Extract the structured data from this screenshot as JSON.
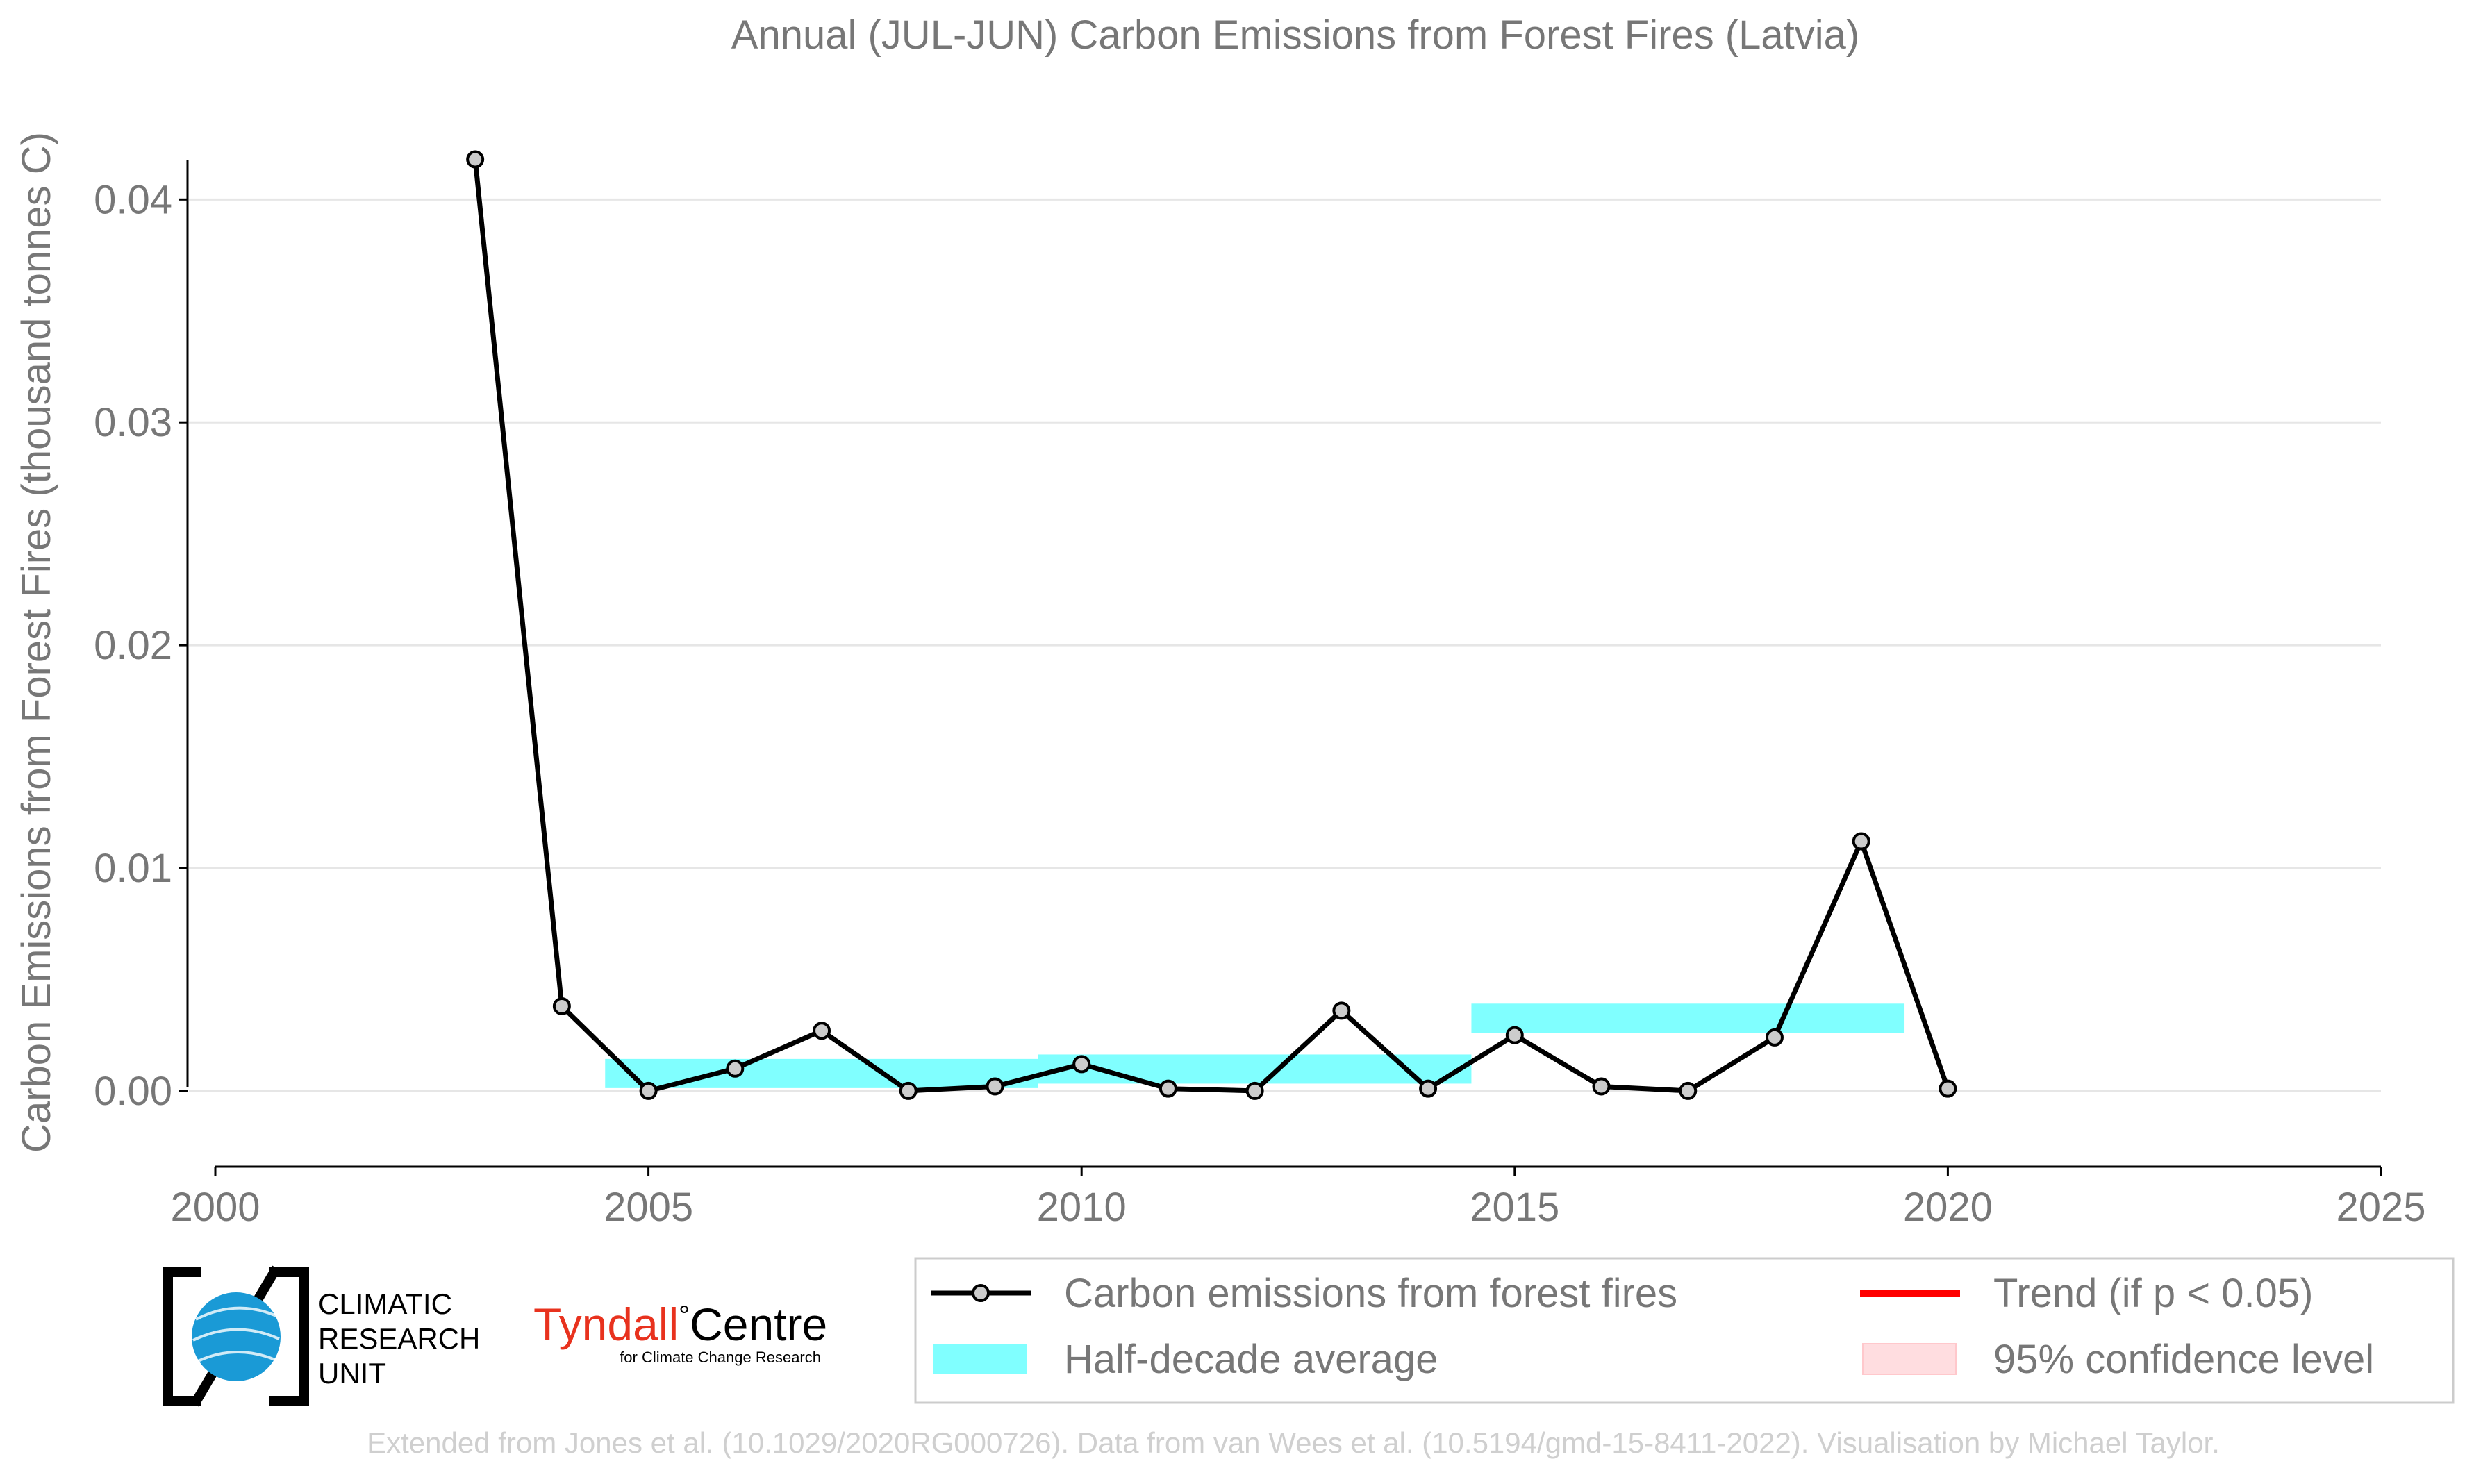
{
  "chart_data": {
    "type": "line",
    "title": "Annual (JUL-JUN) Carbon Emissions from Forest Fires (Latvia)",
    "xlabel": "",
    "ylabel": "Carbon Emissions from Forest Fires (thousand tonnes C)",
    "xlim": [
      2000,
      2025
    ],
    "ylim": [
      -0.0034,
      0.0435
    ],
    "x_ticks": [
      2000,
      2005,
      2010,
      2015,
      2020,
      2025
    ],
    "y_ticks": [
      0.0,
      0.01,
      0.02,
      0.03,
      0.04
    ],
    "y_tick_labels": [
      "0.00",
      "0.01",
      "0.02",
      "0.03",
      "0.04"
    ],
    "grid": true,
    "series": [
      {
        "name": "Carbon emissions from forest fires",
        "color": "#000000",
        "marker_fill": "#cccccc",
        "x": [
          2003,
          2004,
          2005,
          2006,
          2007,
          2008,
          2009,
          2010,
          2011,
          2012,
          2013,
          2014,
          2015,
          2016,
          2017,
          2018,
          2019,
          2020
        ],
        "y": [
          0.0418,
          0.0038,
          0.0,
          0.001,
          0.0027,
          0.0,
          0.0002,
          0.0012,
          0.0001,
          0.0,
          0.0036,
          0.0001,
          0.0025,
          0.0002,
          0.0,
          0.0024,
          0.0112,
          0.0001
        ]
      }
    ],
    "half_decade_average": {
      "name": "Half-decade average",
      "color": "#80ffff",
      "segments": [
        {
          "x_start": 2004.5,
          "x_end": 2009.5,
          "value": 0.00078
        },
        {
          "x_start": 2009.5,
          "x_end": 2014.5,
          "value": 0.00098
        },
        {
          "x_start": 2014.5,
          "x_end": 2019.5,
          "value": 0.00326
        }
      ]
    },
    "legend": {
      "placement": "bottom-right",
      "entries": [
        {
          "label": "Carbon emissions from forest fires",
          "kind": "line-marker",
          "color": "#000000"
        },
        {
          "label": "Trend (if p < 0.05)",
          "kind": "line",
          "color": "#ff0000"
        },
        {
          "label": "Half-decade average",
          "kind": "band",
          "color": "#80ffff"
        },
        {
          "label": "95% confidence level",
          "kind": "band",
          "color": "#ffdde0"
        }
      ]
    },
    "credit": "Extended from Jones et al. (10.1029/2020RG000726). Data from van Wees et al. (10.5194/gmd-15-8411-2022). Visualisation by Michael Taylor."
  },
  "logos": {
    "cru": [
      "CLIMATIC",
      "RESEARCH",
      "UNIT"
    ],
    "tyndall_name": "Tyndall",
    "tyndall_degree": "°",
    "tyndall_centre": "Centre",
    "tyndall_subtitle": "for Climate Change Research"
  },
  "colors": {
    "text_gray": "#777777",
    "grid": "#e6e6e6",
    "credit": "#cfcfcf",
    "tyndall_red": "#e8321e",
    "cru_blue": "#1a9ad6"
  }
}
